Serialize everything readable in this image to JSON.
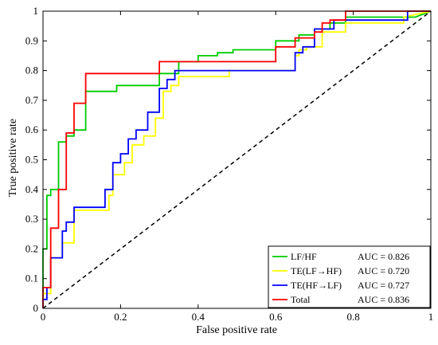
{
  "chart_data": {
    "type": "line",
    "xlabel": "False positive rate",
    "ylabel": "True positive rate",
    "xlim": [
      0,
      1
    ],
    "ylim": [
      0,
      1
    ],
    "xticks": [
      "0",
      "0.2",
      "0.4",
      "0.6",
      "0.8",
      "1"
    ],
    "yticks": [
      "0",
      "0.1",
      "0.2",
      "0.3",
      "0.4",
      "0.5",
      "0.6",
      "0.7",
      "0.8",
      "0.9",
      "1"
    ],
    "grid": false,
    "legend_position": "bottom-right",
    "series": [
      {
        "name": "LF/HF",
        "auc_label": "AUC = 0.826",
        "color": "#00cc00",
        "x": [
          0,
          0,
          0.01,
          0.01,
          0.02,
          0.02,
          0.04,
          0.04,
          0.06,
          0.06,
          0.08,
          0.08,
          0.11,
          0.11,
          0.14,
          0.14,
          0.19,
          0.19,
          0.3,
          0.3,
          0.35,
          0.35,
          0.4,
          0.4,
          0.45,
          0.45,
          0.49,
          0.49,
          0.54,
          0.54,
          0.6,
          0.6,
          0.66,
          0.66,
          0.7,
          0.7,
          0.74,
          0.74,
          0.78,
          0.78,
          0.96,
          1.0
        ],
        "y": [
          0,
          0.2,
          0.2,
          0.38,
          0.38,
          0.4,
          0.4,
          0.56,
          0.56,
          0.58,
          0.58,
          0.6,
          0.6,
          0.73,
          0.73,
          0.73,
          0.73,
          0.75,
          0.75,
          0.79,
          0.79,
          0.83,
          0.83,
          0.85,
          0.85,
          0.86,
          0.86,
          0.87,
          0.87,
          0.87,
          0.87,
          0.9,
          0.9,
          0.92,
          0.92,
          0.94,
          0.94,
          0.96,
          0.96,
          0.98,
          0.98,
          1.0
        ]
      },
      {
        "name": "TE(LF→HF)",
        "auc_label": "AUC = 0.720",
        "color": "#ffff00",
        "x": [
          0,
          0,
          0.02,
          0.02,
          0.05,
          0.05,
          0.08,
          0.08,
          0.17,
          0.17,
          0.18,
          0.18,
          0.21,
          0.21,
          0.23,
          0.23,
          0.26,
          0.26,
          0.29,
          0.29,
          0.31,
          0.31,
          0.33,
          0.33,
          0.35,
          0.35,
          0.48,
          0.48,
          0.65,
          0.65,
          0.66,
          0.66,
          0.68,
          0.68,
          0.72,
          0.72,
          0.78,
          0.78,
          0.93,
          0.93,
          1.0
        ],
        "y": [
          0,
          0.05,
          0.05,
          0.17,
          0.17,
          0.22,
          0.22,
          0.33,
          0.33,
          0.38,
          0.38,
          0.45,
          0.45,
          0.49,
          0.49,
          0.55,
          0.55,
          0.58,
          0.58,
          0.64,
          0.64,
          0.73,
          0.73,
          0.75,
          0.75,
          0.78,
          0.78,
          0.8,
          0.8,
          0.85,
          0.85,
          0.87,
          0.87,
          0.88,
          0.88,
          0.93,
          0.93,
          0.96,
          0.96,
          0.98,
          1.0
        ]
      },
      {
        "name": "TE(HF→LF)",
        "auc_label": "AUC = 0.727",
        "color": "#0000ff",
        "x": [
          0,
          0,
          0.01,
          0.01,
          0.02,
          0.02,
          0.05,
          0.05,
          0.06,
          0.06,
          0.08,
          0.08,
          0.16,
          0.16,
          0.18,
          0.18,
          0.2,
          0.2,
          0.22,
          0.22,
          0.24,
          0.24,
          0.27,
          0.27,
          0.3,
          0.3,
          0.32,
          0.32,
          0.34,
          0.34,
          0.65,
          0.65,
          0.67,
          0.67,
          0.7,
          0.7,
          0.75,
          0.75,
          0.94,
          0.94,
          1.0
        ],
        "y": [
          0,
          0.03,
          0.03,
          0.07,
          0.07,
          0.17,
          0.17,
          0.26,
          0.26,
          0.29,
          0.29,
          0.34,
          0.34,
          0.4,
          0.4,
          0.49,
          0.49,
          0.52,
          0.52,
          0.57,
          0.57,
          0.6,
          0.6,
          0.66,
          0.66,
          0.74,
          0.74,
          0.77,
          0.77,
          0.8,
          0.8,
          0.86,
          0.86,
          0.88,
          0.88,
          0.94,
          0.94,
          0.97,
          0.97,
          1.0,
          1.0
        ]
      },
      {
        "name": "Total",
        "auc_label": "AUC = 0.836",
        "color": "#ff0000",
        "x": [
          0,
          0,
          0.02,
          0.02,
          0.04,
          0.04,
          0.06,
          0.06,
          0.08,
          0.08,
          0.11,
          0.11,
          0.3,
          0.3,
          0.37,
          0.37,
          0.4,
          0.4,
          0.6,
          0.6,
          0.65,
          0.65,
          0.7,
          0.7,
          0.72,
          0.72,
          0.74,
          0.74,
          0.78,
          0.78,
          0.95,
          0.95,
          1.0
        ],
        "y": [
          0,
          0.07,
          0.07,
          0.27,
          0.27,
          0.4,
          0.4,
          0.59,
          0.59,
          0.69,
          0.69,
          0.79,
          0.79,
          0.83,
          0.83,
          0.83,
          0.83,
          0.83,
          0.83,
          0.88,
          0.88,
          0.91,
          0.91,
          0.93,
          0.93,
          0.96,
          0.96,
          0.97,
          0.97,
          1.0,
          1.0,
          1.0,
          1.0
        ]
      }
    ],
    "reference_line": {
      "style": "dashed",
      "color": "#000000",
      "x": [
        0,
        1
      ],
      "y": [
        0,
        1
      ]
    }
  }
}
